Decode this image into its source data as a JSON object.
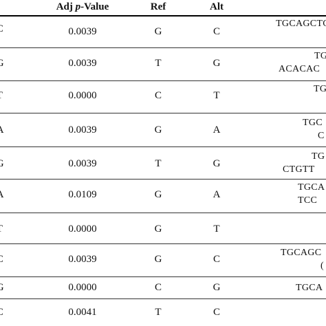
{
  "header": {
    "adj_prefix": "Adj ",
    "p_italic": "p",
    "value_suffix": "-Value",
    "ref": "Ref",
    "alt": "Alt"
  },
  "rows": [
    {
      "variant": "'C",
      "pvalue": "0.0039",
      "ref": "G",
      "alt": "C",
      "seq": [
        "TGCAGCTC"
      ]
    },
    {
      "variant": "'G",
      "pvalue": "0.0039",
      "ref": "T",
      "alt": "G",
      "seq": [
        "TGC",
        "ACACAC"
      ]
    },
    {
      "variant": "'T",
      "pvalue": "0.0000",
      "ref": "C",
      "alt": "T",
      "seq": [
        "TG"
      ]
    },
    {
      "variant": "'A",
      "pvalue": "0.0039",
      "ref": "G",
      "alt": "A",
      "seq": [
        "TGC",
        "C"
      ]
    },
    {
      "variant": "'G",
      "pvalue": "0.0039",
      "ref": "T",
      "alt": "G",
      "seq": [
        "TG",
        "CTGTT"
      ]
    },
    {
      "variant": "'A",
      "pvalue": "0.0109",
      "ref": "G",
      "alt": "A",
      "seq": [
        "TGCA",
        "TCC"
      ]
    },
    {
      "variant": "'T",
      "pvalue": "0.0000",
      "ref": "G",
      "alt": "T",
      "seq": []
    },
    {
      "variant": "'C",
      "pvalue": "0.0039",
      "ref": "G",
      "alt": "C",
      "seq": [
        "TGCAGC",
        "("
      ]
    },
    {
      "variant": "'G",
      "pvalue": "0.0000",
      "ref": "C",
      "alt": "G",
      "seq": [
        "TGCA"
      ]
    },
    {
      "variant": "'C",
      "pvalue": "0.0041",
      "ref": "T",
      "alt": "C",
      "seq": []
    }
  ]
}
